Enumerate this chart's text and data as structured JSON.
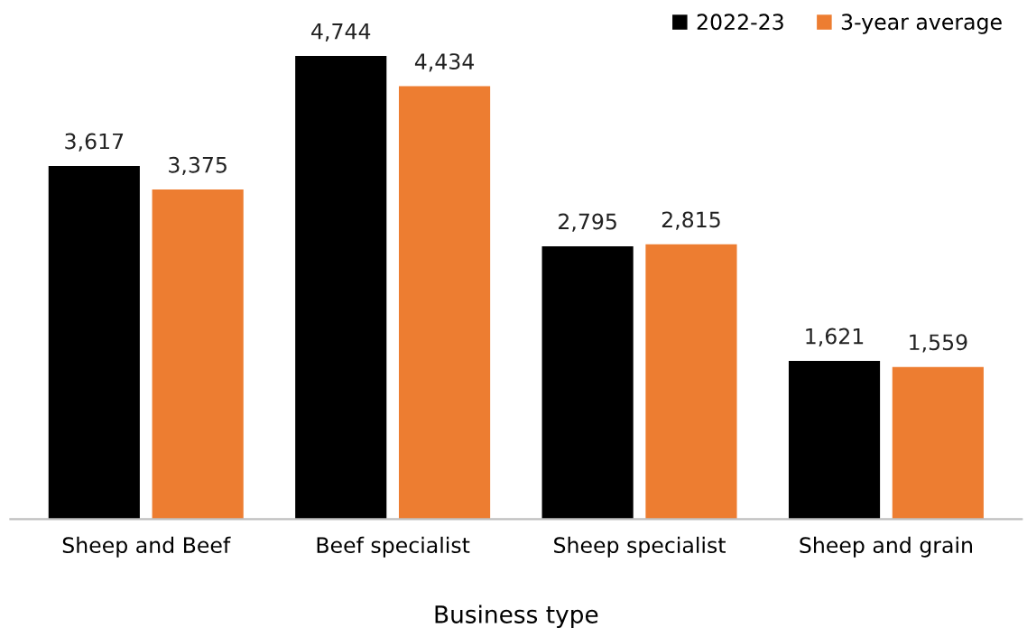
{
  "chart_data": {
    "type": "bar",
    "xlabel": "Business type",
    "categories": [
      "Sheep and Beef",
      "Beef specialist",
      "Sheep specialist",
      "Sheep and grain"
    ],
    "series": [
      {
        "name": "2022-23",
        "color": "#000000",
        "values": [
          3617,
          4744,
          2795,
          1621
        ],
        "value_labels": [
          "3,617",
          "4,744",
          "2,795",
          "1,621"
        ]
      },
      {
        "name": "3-year average",
        "color": "#ed7d31",
        "values": [
          3375,
          4434,
          2815,
          1559
        ],
        "value_labels": [
          "3,375",
          "4,434",
          "2,815",
          "1,559"
        ]
      }
    ],
    "legend": "top right",
    "grid": false,
    "tick_labels": "x"
  }
}
